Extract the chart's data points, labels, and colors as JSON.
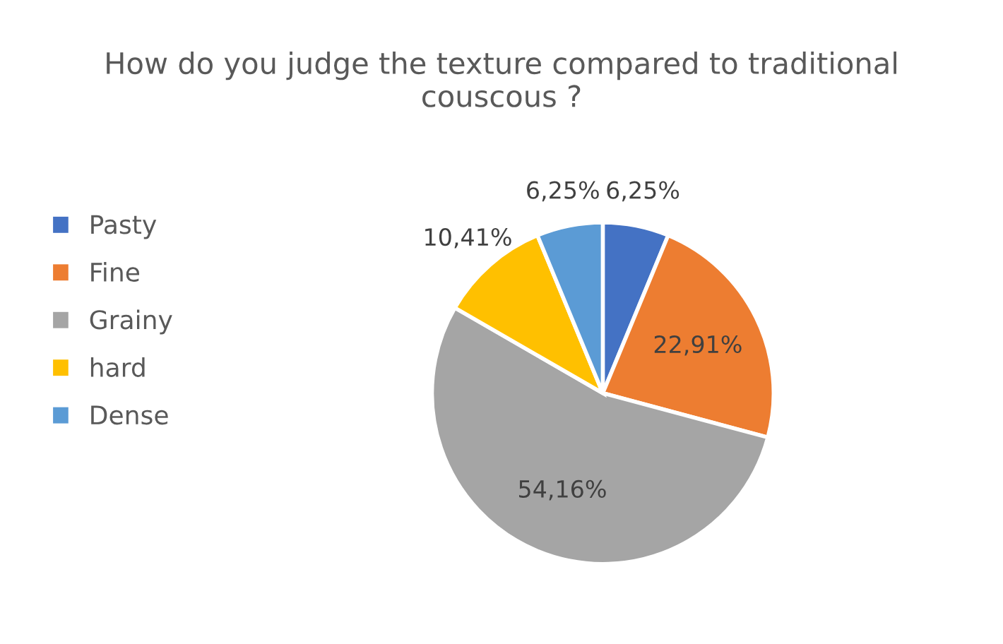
{
  "chart_data": {
    "type": "pie",
    "title": "How do you judge the texture compared to traditional couscous ?",
    "categories": [
      "Pasty",
      "Fine",
      "Grainy",
      "hard",
      "Dense"
    ],
    "values": [
      6.25,
      22.91,
      54.16,
      10.41,
      6.25
    ],
    "value_labels": [
      "6,25%",
      "22,91%",
      "54,16%",
      "10,41%",
      "6,25%"
    ],
    "colors": [
      "#4472c4",
      "#ed7d31",
      "#a5a5a5",
      "#ffc000",
      "#5b9bd5"
    ],
    "legend": "left"
  }
}
